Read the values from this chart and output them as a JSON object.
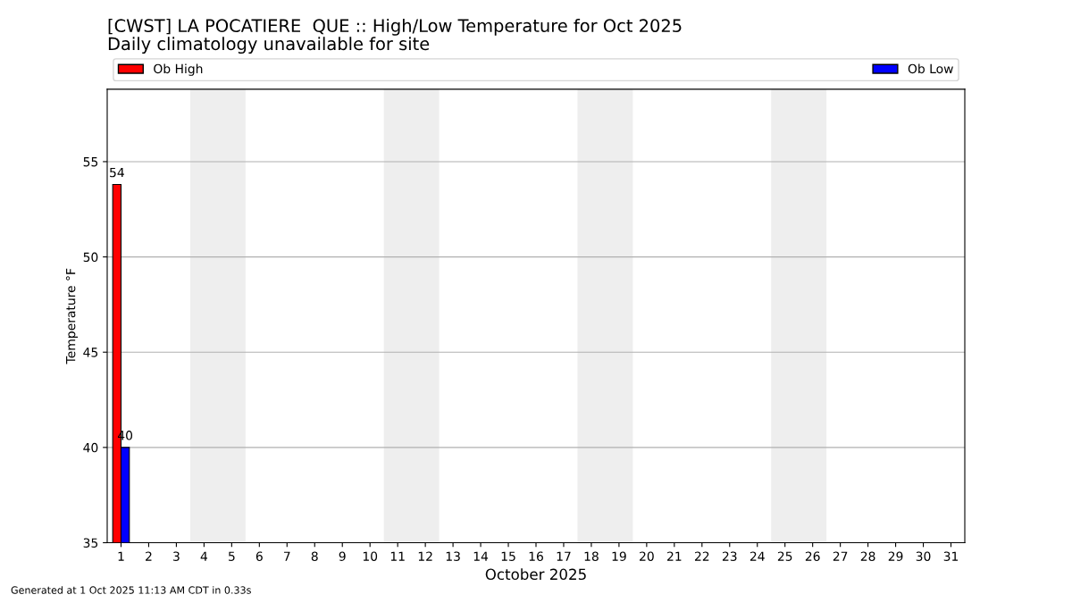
{
  "chart_data": {
    "type": "bar",
    "title": "[CWST] LA POCATIERE  QUE :: High/Low Temperature for Oct 2025",
    "subtitle": "Daily climatology unavailable for site",
    "xlabel": "October 2025",
    "ylabel": "Temperature °F",
    "x": [
      1
    ],
    "series": [
      {
        "name": "Ob High",
        "color": "#ff0000",
        "values": [
          53.8
        ],
        "value_labels": [
          "54"
        ]
      },
      {
        "name": "Ob Low",
        "color": "#0000ff",
        "values": [
          40
        ],
        "value_labels": [
          "40"
        ]
      }
    ],
    "xlim": [
      0.5,
      31.5
    ],
    "xticks": [
      1,
      2,
      3,
      4,
      5,
      6,
      7,
      8,
      9,
      10,
      11,
      12,
      13,
      14,
      15,
      16,
      17,
      18,
      19,
      20,
      21,
      22,
      23,
      24,
      25,
      26,
      27,
      28,
      29,
      30,
      31
    ],
    "ylim": [
      35,
      58.8
    ],
    "yticks": [
      35,
      40,
      45,
      50,
      55
    ],
    "bands": [
      {
        "axis": "x",
        "from": 3.5,
        "to": 5.5,
        "color": "#eeeeee"
      },
      {
        "axis": "x",
        "from": 10.5,
        "to": 12.5,
        "color": "#eeeeee"
      },
      {
        "axis": "x",
        "from": 17.5,
        "to": 19.5,
        "color": "#eeeeee"
      },
      {
        "axis": "x",
        "from": 24.5,
        "to": 26.5,
        "color": "#eeeeee"
      }
    ],
    "grid": "y",
    "legend": "top",
    "annotations": [
      "Generated at 1 Oct 2025 11:13 AM CDT in 0.33s"
    ]
  }
}
